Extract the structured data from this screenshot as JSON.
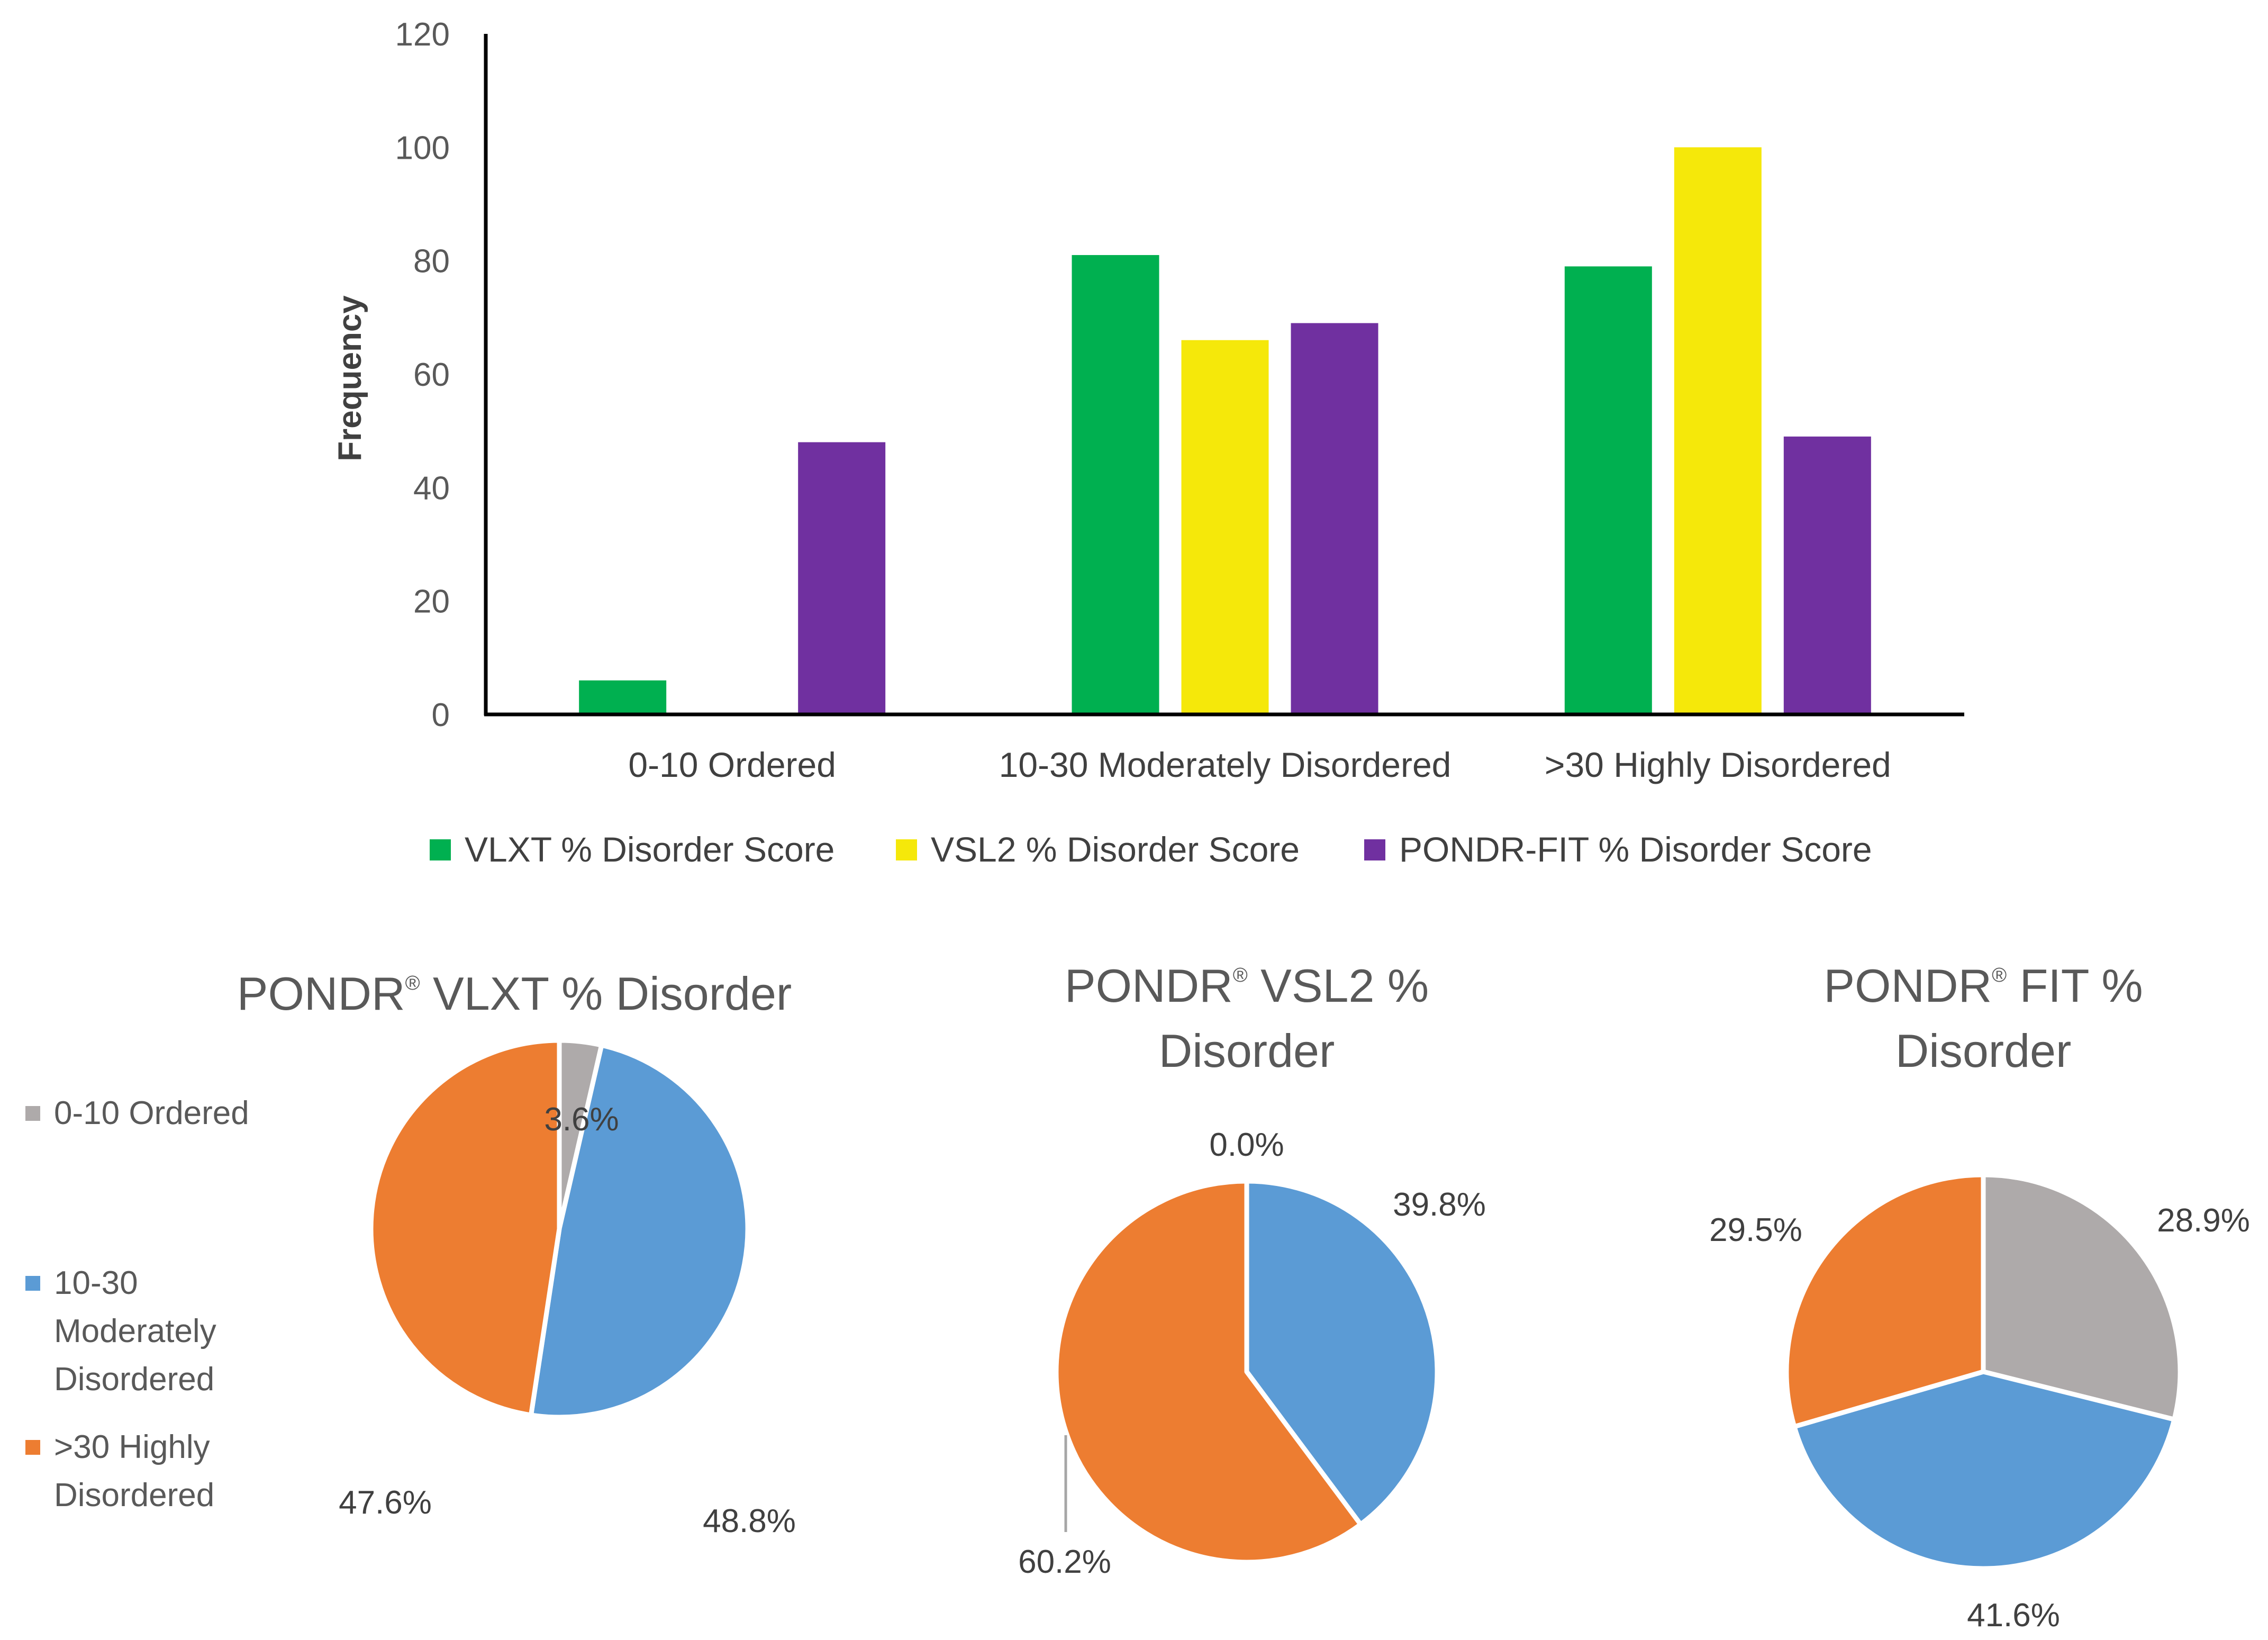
{
  "colors": {
    "vlxt": "#00b050",
    "vsl2": "#f5e80a",
    "fit": "#7030a0",
    "ordered": "#aeaaaa",
    "moderate": "#5b9bd5",
    "high": "#ed7d31",
    "axis": "#000000"
  },
  "chart_data": [
    {
      "type": "bar",
      "categories": [
        "0-10 Ordered",
        "10-30 Moderately Disordered",
        ">30 Highly Disordered"
      ],
      "series": [
        {
          "name": "VLXT % Disorder Score",
          "color": "#00b050",
          "values": [
            6,
            81,
            79
          ]
        },
        {
          "name": "VSL2 % Disorder Score",
          "color": "#f5e80a",
          "values": [
            0,
            66,
            100
          ]
        },
        {
          "name": "PONDR-FIT % Disorder Score",
          "color": "#7030a0",
          "values": [
            48,
            69,
            49
          ]
        }
      ],
      "ylabel": "Frequency",
      "xlabel": "",
      "ylim": [
        0,
        120
      ],
      "yticks": [
        0,
        20,
        40,
        60,
        80,
        100,
        120
      ],
      "legend": "bottom"
    },
    {
      "type": "pie",
      "title_parts": [
        "PONDR",
        "®",
        " VLXT % Disorder"
      ],
      "slices": [
        {
          "label": "0-10 Ordered",
          "value": 3.6,
          "text": "3.6%",
          "color": "#aeaaaa"
        },
        {
          "label": "10-30 Moderately Disordered",
          "value": 48.8,
          "text": "48.8%",
          "color": "#5b9bd5"
        },
        {
          "label": ">30 Highly Disordered",
          "value": 47.6,
          "text": "47.6%",
          "color": "#ed7d31"
        }
      ],
      "legend": "left"
    },
    {
      "type": "pie",
      "title_parts": [
        "PONDR",
        "®",
        " VSL2 %",
        "Disorder"
      ],
      "slices": [
        {
          "label": "0-10 Ordered",
          "value": 0.0,
          "text": "0.0%",
          "color": "#aeaaaa"
        },
        {
          "label": "10-30 Moderately Disordered",
          "value": 39.8,
          "text": "39.8%",
          "color": "#5b9bd5"
        },
        {
          "label": ">30 Highly Disordered",
          "value": 60.2,
          "text": "60.2%",
          "color": "#ed7d31"
        }
      ]
    },
    {
      "type": "pie",
      "title_parts": [
        "PONDR",
        "®",
        " FIT %",
        "Disorder"
      ],
      "slices": [
        {
          "label": "0-10 Ordered",
          "value": 28.9,
          "text": "28.9%",
          "color": "#aeaaaa"
        },
        {
          "label": "10-30 Moderately Disordered",
          "value": 41.6,
          "text": "41.6%",
          "color": "#5b9bd5"
        },
        {
          "label": ">30 Highly Disordered",
          "value": 29.5,
          "text": "29.5%",
          "color": "#ed7d31"
        }
      ]
    }
  ],
  "pie_legend": {
    "items": [
      {
        "lines": [
          "0-10 Ordered"
        ],
        "color": "#aeaaaa"
      },
      {
        "lines": [
          "10-30",
          "Moderately",
          "Disordered"
        ],
        "color": "#5b9bd5"
      },
      {
        "lines": [
          ">30 Highly",
          "Disordered"
        ],
        "color": "#ed7d31"
      }
    ]
  }
}
